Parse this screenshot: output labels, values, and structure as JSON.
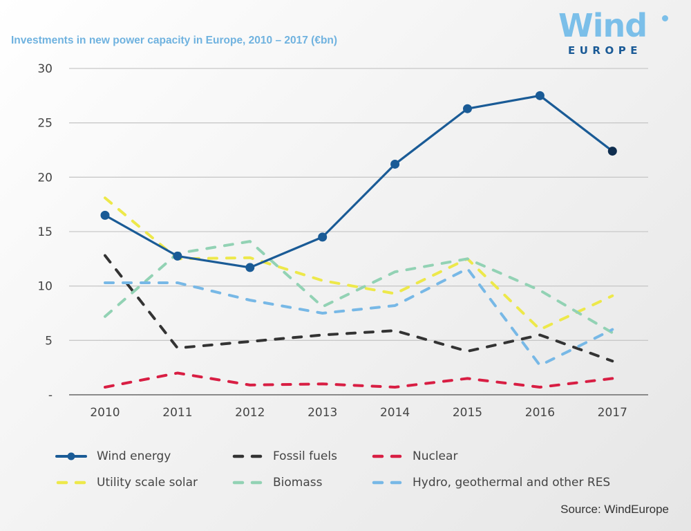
{
  "chart_data": {
    "type": "line",
    "title": "Investments in new power capacity in Europe, 2010 – 2017 (€bn)",
    "xlabel": "",
    "ylabel": "",
    "x": [
      "2010",
      "2011",
      "2012",
      "2013",
      "2014",
      "2015",
      "2016",
      "2017"
    ],
    "ylim": [
      0,
      30
    ],
    "yticks": [
      30,
      25,
      20,
      15,
      10,
      5,
      0
    ],
    "ytick_labels": [
      "30",
      "25",
      "20",
      "15",
      "10",
      "5",
      "-"
    ],
    "grid": true,
    "legend_position": "bottom",
    "series": [
      {
        "name": "Wind energy",
        "style": "solid-markers",
        "color": "#1a5b96",
        "values": [
          16.5,
          12.75,
          11.7,
          14.5,
          21.2,
          26.3,
          27.5,
          22.4
        ]
      },
      {
        "name": "Fossil fuels",
        "style": "dashed",
        "color": "#333333",
        "values": [
          12.8,
          4.3,
          4.9,
          5.5,
          5.9,
          4.0,
          5.5,
          3.1
        ]
      },
      {
        "name": "Nuclear",
        "style": "dashed",
        "color": "#d81e43",
        "values": [
          0.7,
          2.0,
          0.9,
          1.0,
          0.7,
          1.5,
          0.7,
          1.5
        ]
      },
      {
        "name": "Utility scale solar",
        "style": "dashed",
        "color": "#ede84a",
        "values": [
          18.1,
          12.5,
          12.6,
          10.5,
          9.3,
          12.5,
          6.0,
          9.1
        ]
      },
      {
        "name": "Biomass",
        "style": "dashed",
        "color": "#92d2b4",
        "values": [
          7.2,
          13.0,
          14.1,
          8.1,
          11.3,
          12.5,
          9.6,
          5.7
        ]
      },
      {
        "name": "Hydro, geothermal and other RES",
        "style": "dashed",
        "color": "#77b8e6",
        "values": [
          10.3,
          10.3,
          8.7,
          7.5,
          8.2,
          11.6,
          2.7,
          6.0
        ]
      }
    ]
  },
  "logo": {
    "word": "Wind",
    "sub": "EUROPE"
  },
  "source": "Source: WindEurope"
}
